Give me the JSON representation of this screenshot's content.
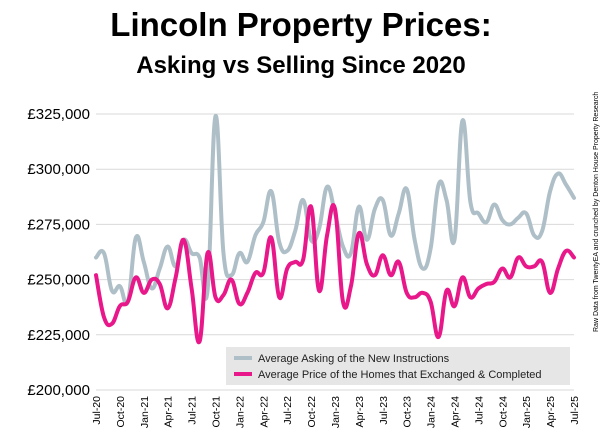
{
  "title": "Lincoln Property Prices:",
  "subtitle": "Asking vs Selling Since 2020",
  "source_note": "Raw Data from TwentyEA and crunched by Denton House Property Research",
  "colors": {
    "asking": "#afbfc8",
    "selling": "#e8178a",
    "legend_bg": "#e6e6e6"
  },
  "chart_data": {
    "type": "line",
    "x": [
      "Jul-20",
      "Aug-20",
      "Sep-20",
      "Oct-20",
      "Nov-20",
      "Dec-20",
      "Jan-21",
      "Feb-21",
      "Mar-21",
      "Apr-21",
      "May-21",
      "Jun-21",
      "Jul-21",
      "Aug-21",
      "Sep-21",
      "Oct-21",
      "Nov-21",
      "Dec-21",
      "Jan-22",
      "Feb-22",
      "Mar-22",
      "Apr-22",
      "May-22",
      "Jun-22",
      "Jul-22",
      "Aug-22",
      "Sep-22",
      "Oct-22",
      "Nov-22",
      "Dec-22",
      "Jan-23",
      "Feb-23",
      "Mar-23",
      "Apr-23",
      "May-23",
      "Jun-23",
      "Jul-23",
      "Aug-23",
      "Sep-23",
      "Oct-23",
      "Nov-23",
      "Dec-23",
      "Jan-24",
      "Feb-24",
      "Mar-24",
      "Apr-24",
      "May-24",
      "Jun-24",
      "Jul-24",
      "Aug-24",
      "Sep-24",
      "Oct-24",
      "Nov-24",
      "Dec-24",
      "Jan-25",
      "Feb-25",
      "Mar-25",
      "Apr-25",
      "May-25",
      "Jun-25",
      "Jul-25"
    ],
    "x_tick_labels": [
      "Jul-20",
      "Oct-20",
      "Jan-21",
      "Apr-21",
      "Jul-21",
      "Oct-21",
      "Jan-22",
      "Apr-22",
      "Jul-22",
      "Oct-22",
      "Jan-23",
      "Apr-23",
      "Jul-23",
      "Oct-23",
      "Jan-24",
      "Apr-24",
      "Jul-24",
      "Oct-24",
      "Jan-25",
      "Apr-25",
      "Jul-25"
    ],
    "series": [
      {
        "name": "Average Asking of the New Instructions",
        "values": [
          260000,
          262000,
          245000,
          247000,
          240000,
          269000,
          258000,
          246000,
          255000,
          265000,
          256000,
          268000,
          262000,
          260000,
          245000,
          324000,
          262000,
          252000,
          262000,
          258000,
          270000,
          276000,
          290000,
          267000,
          263000,
          272000,
          286000,
          268000,
          273000,
          292000,
          280000,
          265000,
          262000,
          283000,
          268000,
          282000,
          286000,
          270000,
          280000,
          291000,
          268000,
          255000,
          264000,
          293000,
          286000,
          268000,
          322000,
          285000,
          280000,
          276000,
          284000,
          277000,
          275000,
          278000,
          280000,
          270000,
          272000,
          290000,
          298000,
          293000,
          287000
        ]
      },
      {
        "name": "Average Price of the Homes that Exchanged & Completed",
        "values": [
          252000,
          233000,
          230000,
          238000,
          240000,
          251000,
          244000,
          250000,
          248000,
          237000,
          251000,
          268000,
          246000,
          222000,
          262000,
          242000,
          243000,
          250000,
          239000,
          244000,
          253000,
          253000,
          269000,
          242000,
          255000,
          258000,
          259000,
          283000,
          245000,
          270000,
          282000,
          240000,
          247000,
          271000,
          257000,
          252000,
          261000,
          252000,
          258000,
          244000,
          242000,
          244000,
          240000,
          224000,
          245000,
          238000,
          251000,
          242000,
          246000,
          248000,
          249000,
          255000,
          251000,
          260000,
          256000,
          256000,
          258000,
          244000,
          255000,
          263000,
          260000
        ]
      }
    ],
    "y_tick_labels": [
      "£200,000",
      "£225,000",
      "£250,000",
      "£275,000",
      "£300,000",
      "£325,000"
    ],
    "ylim": [
      200000,
      325000
    ],
    "grid": true,
    "legend_position": "bottom-right, inside plot"
  }
}
